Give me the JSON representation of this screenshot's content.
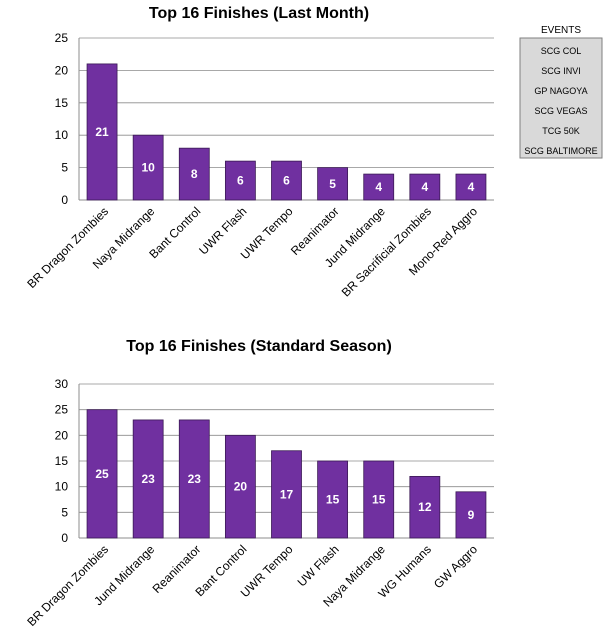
{
  "chart_data": [
    {
      "type": "bar",
      "title": "Top 16 Finishes (Last Month)",
      "categories": [
        "BR Dragon Zombies",
        "Naya Midrange",
        "Bant Control",
        "UWR Flash",
        "UWR Tempo",
        "Reanimator",
        "Jund Midrange",
        "BR Sacrificial Zombies",
        "Mono-Red Aggro"
      ],
      "values": [
        21,
        10,
        8,
        6,
        6,
        5,
        4,
        4,
        4
      ],
      "ylim": [
        0,
        25
      ],
      "yticks": [
        0,
        5,
        10,
        15,
        20,
        25
      ],
      "grid": true,
      "xlabel": "",
      "ylabel": "",
      "bar_color": "#7030A0"
    },
    {
      "type": "bar",
      "title": "Top 16 Finishes (Standard Season)",
      "categories": [
        "BR Dragon Zombies",
        "Jund Midrange",
        "Reanimator",
        "Bant Control",
        "UWR Tempo",
        "UW Flash",
        "Naya Midrange",
        "WG Humans",
        "GW Aggro"
      ],
      "values": [
        25,
        23,
        23,
        20,
        17,
        15,
        15,
        12,
        9
      ],
      "ylim": [
        0,
        30
      ],
      "yticks": [
        0,
        5,
        10,
        15,
        20,
        25,
        30
      ],
      "grid": true,
      "xlabel": "",
      "ylabel": "",
      "bar_color": "#7030A0"
    }
  ],
  "events_legend": {
    "header": "EVENTS",
    "items": [
      "SCG COL",
      "SCG INVI",
      "GP NAGOYA",
      "SCG VEGAS",
      "TCG 50K",
      "SCG BALTIMORE"
    ]
  }
}
